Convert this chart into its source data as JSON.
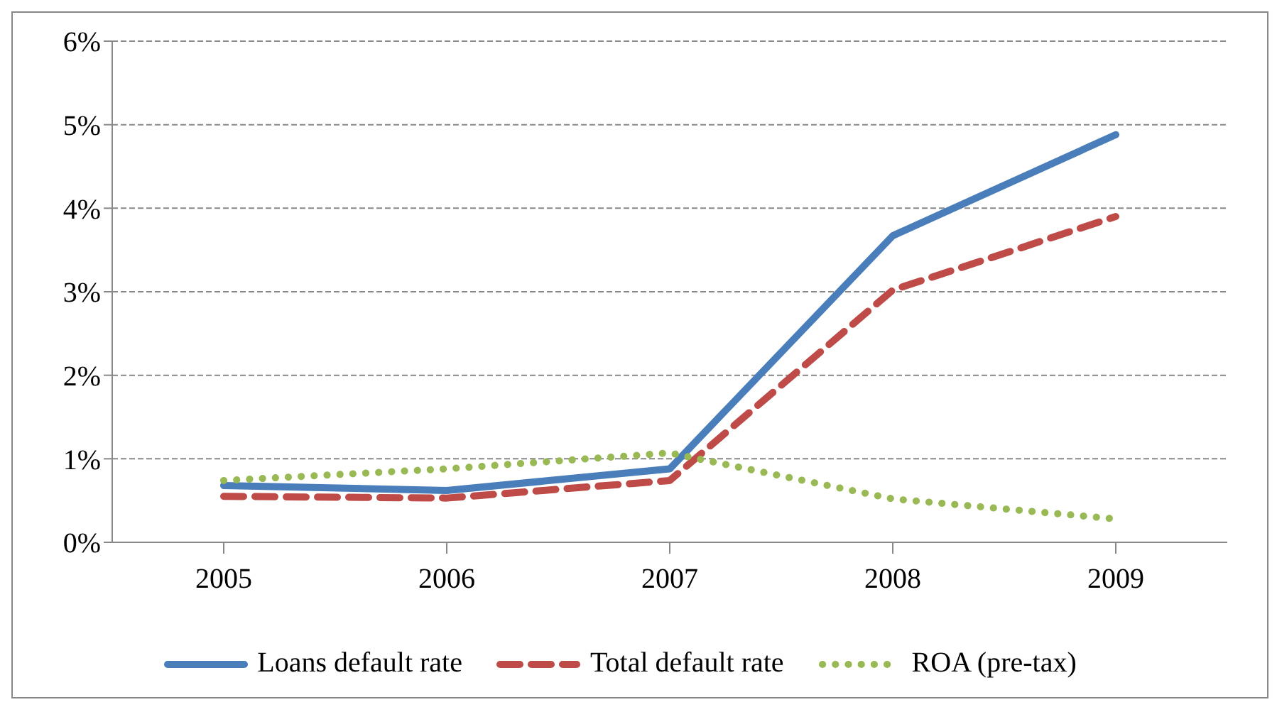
{
  "chart_data": {
    "type": "line",
    "categories": [
      "2005",
      "2006",
      "2007",
      "2008",
      "2009"
    ],
    "series": [
      {
        "name": "Loans default rate",
        "color": "#4a7ebb",
        "line_style": "solid",
        "values": [
          0.68,
          0.62,
          0.88,
          3.67,
          4.88
        ]
      },
      {
        "name": "Total default rate",
        "color": "#be4b48",
        "line_style": "dashed",
        "values": [
          0.55,
          0.53,
          0.74,
          3.02,
          3.9
        ]
      },
      {
        "name": "ROA (pre-tax)",
        "color": "#98b954",
        "line_style": "dotted",
        "values": [
          0.74,
          0.88,
          1.07,
          0.52,
          0.28
        ]
      }
    ],
    "ylim": [
      0,
      6
    ],
    "yticks": [
      {
        "value": 0,
        "label": "0%"
      },
      {
        "value": 1,
        "label": "1%"
      },
      {
        "value": 2,
        "label": "2%"
      },
      {
        "value": 3,
        "label": "3%"
      },
      {
        "value": 4,
        "label": "4%"
      },
      {
        "value": 5,
        "label": "5%"
      },
      {
        "value": 6,
        "label": "6%"
      }
    ],
    "grid": "y",
    "legend": "bottom",
    "marker": "none"
  }
}
